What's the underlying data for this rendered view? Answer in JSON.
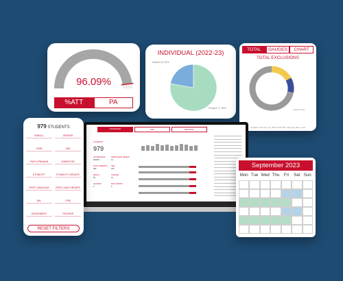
{
  "attendance": {
    "percent": "96.09%",
    "gauge_fraction": 0.96,
    "tabs": [
      "%ATT",
      "PA"
    ],
    "active_tab": "%ATT",
    "colors": {
      "accent": "#c8102e",
      "gauge": "#a6a6a6",
      "track": "#ececec"
    }
  },
  "individual": {
    "title": "INDIVIDUAL (2022-23)",
    "slices": [
      {
        "label": "Absent",
        "value": 22.22,
        "color": "#7aacdc"
      },
      {
        "label": "Present",
        "value": 77.78,
        "color": "#a8dcc0"
      }
    ],
    "label_absent": "Absent 22.22%",
    "label_present": "Present 77.78%"
  },
  "exclusions": {
    "tabs": [
      "TOTAL",
      "GAUGES",
      "CHART"
    ],
    "active_tab": "TOTAL",
    "title": "TOTAL EXCLUSIONS",
    "segments": [
      {
        "value": 72,
        "color": "#9a9a9a"
      },
      {
        "value": 11,
        "color": "#3a4f9a"
      },
      {
        "value": 17,
        "color": "#f2c94c"
      }
    ],
    "footer": "Updated: February 21, 2023 10:36 PM | Showing data: 1 left",
    "note": "Academic Year"
  },
  "filters": {
    "count": "979",
    "count_label": "STUDENTS",
    "rows": [
      [
        "ENROLL",
        "GENDER"
      ],
      [
        "YEAR",
        "SEN"
      ],
      [
        "PUPIL PREMIUM",
        "DISADVTGE"
      ],
      [
        "ETHNICITY",
        "ETHNICITY GROUPS"
      ],
      [
        "FIRST LANGUAGE",
        "FIRST LANG GROUPS"
      ],
      [
        "EAL",
        "FSM"
      ],
      [
        "ASSIGNMENT",
        "TEACHER"
      ]
    ],
    "reset_label": "RESET FILTERS"
  },
  "laptop": {
    "tabs": [
      "DASHBOARD",
      "MAP",
      "REGIONAL"
    ],
    "students_label": "STUDENTS",
    "students_count": "979",
    "stats": [
      [
        "ATTENDANCE",
        "96.09%"
      ],
      [
        "PERSISTENT ABSENT",
        "12"
      ],
      [
        "PUPIL PREMIUM",
        "180"
      ],
      [
        "SEN",
        "155"
      ],
      [
        "MEALS",
        "69"
      ],
      [
        "CHANGE",
        "14"
      ],
      [
        "LEAVERS",
        "6"
      ],
      [
        "EXCLUSIONS",
        "9"
      ]
    ],
    "bar_heights": [
      0.55,
      0.7,
      0.62,
      0.8,
      0.66,
      0.75,
      0.58,
      0.7,
      0.8,
      0.72,
      0.6,
      0.65
    ]
  },
  "calendar": {
    "month": "September 2023",
    "days": [
      "Mon",
      "Tue",
      "Wed",
      "Thu",
      "Fri",
      "Sat",
      "Sun"
    ],
    "cell_colors": [
      "",
      "",
      "",
      "",
      "",
      "",
      "",
      "",
      "",
      "",
      "",
      "b",
      "b",
      "",
      "g",
      "g",
      "g",
      "g",
      "g",
      "",
      "",
      "",
      "",
      "",
      "",
      "b",
      "b",
      "",
      "g",
      "g",
      "g",
      "g",
      "g",
      "",
      "",
      "",
      "",
      "",
      "",
      "",
      "",
      ""
    ]
  }
}
